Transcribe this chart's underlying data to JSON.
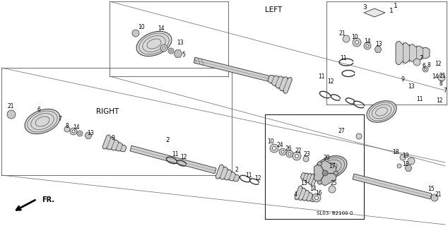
{
  "background_color": "#ffffff",
  "line_color": "#1a1a1a",
  "label_left": "LEFT",
  "label_right": "RIGHT",
  "label_fr": "FR.",
  "label_code": "SL03- B2100 0",
  "figsize": [
    6.34,
    3.2
  ],
  "dpi": 100,
  "gray_light": "#e0e0e0",
  "gray_mid": "#b0b0b0",
  "gray_dark": "#808080",
  "gray_fill": "#d8d8d8",
  "shaft_color": "#c8c8c8",
  "shaft_stroke": "#333333",
  "box_line": "#555555",
  "label_fontsize": 6.5,
  "title_fontsize": 7.5,
  "small_fontsize": 5.5,
  "code_fontsize": 5.0
}
